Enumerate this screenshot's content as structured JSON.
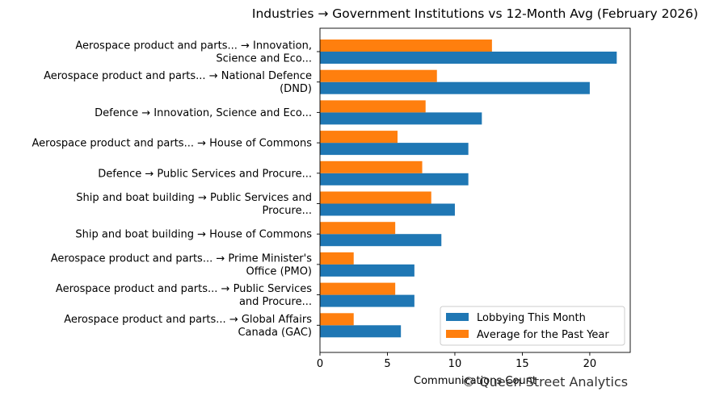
{
  "chart_data": {
    "type": "bar",
    "orientation": "horizontal",
    "title": "Industries → Government Institutions vs 12-Month Avg (February 2026)",
    "xlabel": "Communications Count",
    "ylabel": "",
    "xlim": [
      0,
      23
    ],
    "xticks": [
      0,
      5,
      10,
      15,
      20
    ],
    "grid": false,
    "legend_position": "lower-right",
    "categories": [
      [
        "Aerospace product and parts... → Innovation,",
        "Science and Eco..."
      ],
      [
        "Aerospace product and parts... → National Defence",
        "(DND)"
      ],
      [
        "Defence → Innovation, Science and Eco..."
      ],
      [
        "Aerospace product and parts... → House of Commons"
      ],
      [
        "Defence → Public Services and Procure..."
      ],
      [
        "Ship and boat building → Public Services and",
        "Procure..."
      ],
      [
        "Ship and boat building → House of Commons"
      ],
      [
        "Aerospace product and parts... → Prime Minister's",
        "Office (PMO)"
      ],
      [
        "Aerospace product and parts... → Public Services",
        "and Procure..."
      ],
      [
        "Aerospace product and parts... → Global Affairs",
        "Canada (GAC)"
      ]
    ],
    "series": [
      {
        "name": "Lobbying This Month",
        "color": "#1f77b4",
        "values": [
          22,
          20,
          12,
          11,
          11,
          10,
          9,
          7,
          7,
          6
        ]
      },
      {
        "name": "Average for the Past Year",
        "color": "#ff7f0e",
        "values": [
          12.75,
          8.67,
          7.83,
          5.75,
          7.58,
          8.25,
          5.58,
          2.5,
          5.58,
          2.5
        ]
      }
    ]
  },
  "watermark": "© Queen Street Analytics"
}
